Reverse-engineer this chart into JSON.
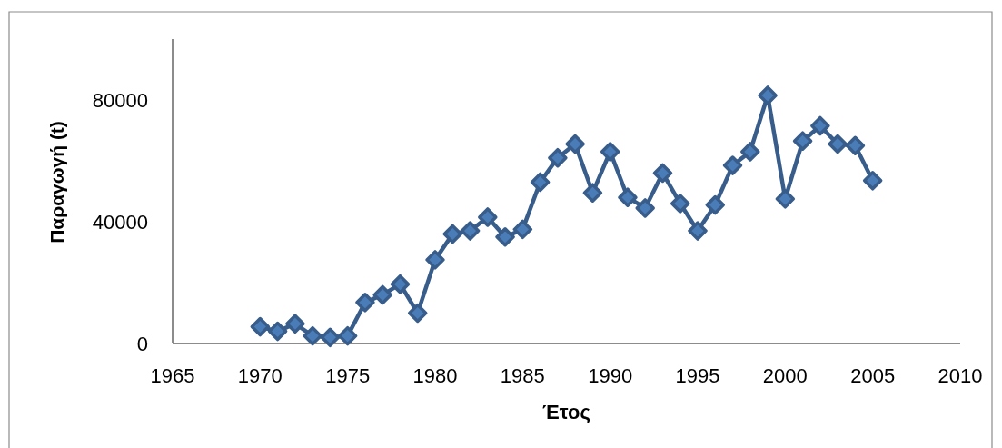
{
  "chart_data": {
    "type": "line",
    "xlabel": "Έτος",
    "ylabel": "Παραγωγή (t)",
    "x": [
      1970,
      1971,
      1972,
      1973,
      1974,
      1975,
      1976,
      1977,
      1978,
      1979,
      1980,
      1981,
      1982,
      1983,
      1984,
      1985,
      1986,
      1987,
      1988,
      1989,
      1990,
      1991,
      1992,
      1993,
      1994,
      1995,
      1996,
      1997,
      1998,
      1999,
      2000,
      2001,
      2002,
      2003,
      2004,
      2005
    ],
    "series": [
      {
        "color": "#385d8a",
        "values": [
          5500,
          4000,
          6500,
          2500,
          2000,
          2500,
          13500,
          16000,
          19500,
          10000,
          27500,
          36000,
          37000,
          41500,
          35000,
          37500,
          53000,
          61000,
          65500,
          49500,
          63000,
          48000,
          44500,
          56000,
          46000,
          37000,
          45500,
          58500,
          63000,
          81500,
          47500,
          66500,
          71500,
          65500,
          65000,
          53500
        ]
      }
    ],
    "xlim": [
      1965,
      2010
    ],
    "xticks": [
      1965,
      1970,
      1975,
      1980,
      1985,
      1990,
      1995,
      2000,
      2005,
      2010
    ],
    "ylim": [
      0,
      100000
    ],
    "yticks": [
      0,
      40000,
      80000
    ],
    "marker": "diamond",
    "line_style": "solid"
  }
}
